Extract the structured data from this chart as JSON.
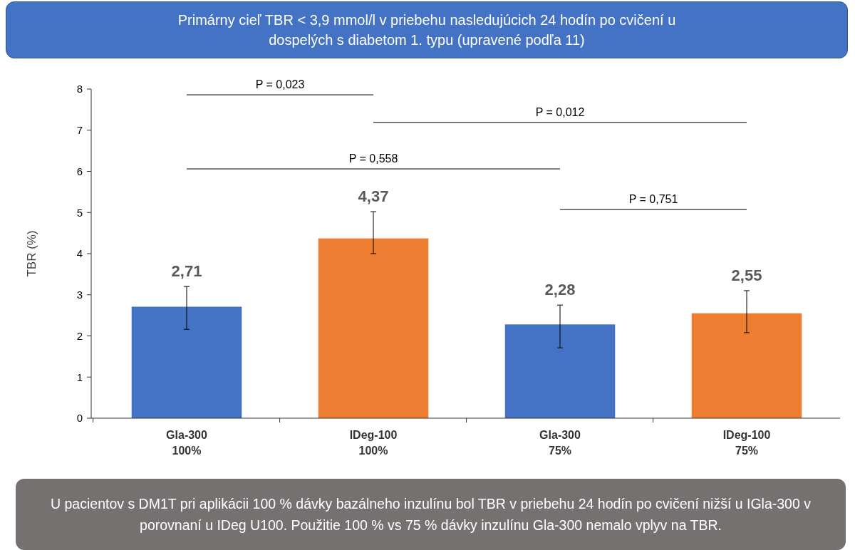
{
  "chart_data": {
    "type": "bar",
    "title": "Primárny cieľ TBR < 3,9 mmol/l v priebehu nasledujúcich 24 hodín po cvičení u dospelých s diabetom 1. typu (upravené podľa 11)",
    "ylabel": "TBR (%)",
    "categories": [
      "Gla-300 100%",
      "IDeg-100 100%",
      "Gla-300 75%",
      "IDeg-100 75%"
    ],
    "values": [
      2.71,
      4.37,
      2.28,
      2.55
    ],
    "colors": [
      "#4472c4",
      "#ed7d31",
      "#4472c4",
      "#ed7d31"
    ],
    "errors": [
      [
        2.16,
        3.2
      ],
      [
        4.0,
        5.02
      ],
      [
        1.71,
        2.75
      ],
      [
        2.08,
        3.1
      ]
    ],
    "value_labels": [
      "2,71",
      "4,37",
      "2,28",
      "2,55"
    ],
    "ylim": [
      0,
      8
    ],
    "yticks": [
      0,
      1,
      2,
      3,
      4,
      5,
      6,
      7,
      8
    ],
    "grid": false,
    "annotations": [
      "P = 0,023",
      "P = 0,012",
      "P = 0,558",
      "P = 0,751",
      "U pacientov s DM1T pri aplikácii 100 % dávky bazálneho inzulínu bol TBR v priebehu 24 hodín po cvičení nižší u IGla-300 v porovnaní u IDeg U100. Použitie 100 % vs 75 % dávky inzulínu Gla-300 nemalo vplyv na TBR."
    ]
  }
}
